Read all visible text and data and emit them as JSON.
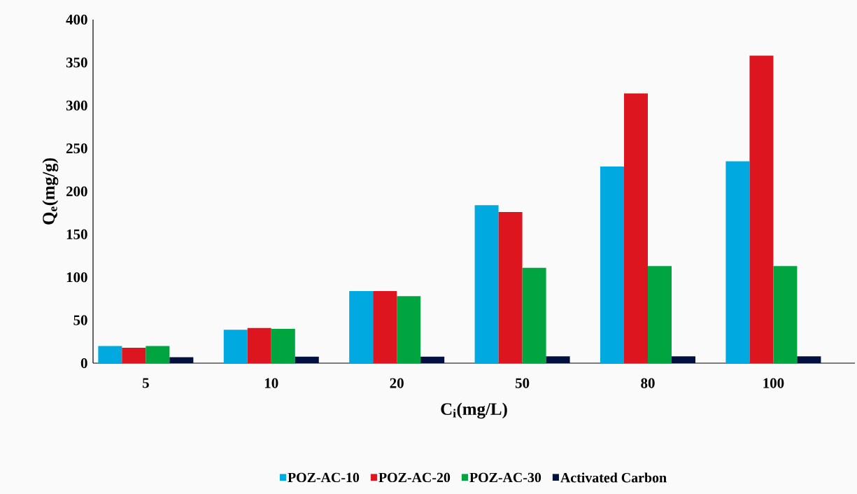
{
  "chart_data": {
    "type": "bar",
    "xlabel": "C$_{i}$(mg/L)",
    "ylabel": "Q$_{e}$(mg/g)",
    "categories": [
      "5",
      "10",
      "20",
      "50",
      "80",
      "100"
    ],
    "series": [
      {
        "name": "POZ-AC-10",
        "color": "#00a9e0",
        "values": [
          20,
          39,
          84,
          184,
          229,
          235
        ]
      },
      {
        "name": "POZ-AC-20",
        "color": "#dc151f",
        "values": [
          18,
          41,
          84,
          176,
          314,
          358
        ]
      },
      {
        "name": "POZ-AC-30",
        "color": "#00a53f",
        "values": [
          20,
          40,
          78,
          111,
          113,
          113
        ]
      },
      {
        "name": "Activated Carbon",
        "color": "#02103f",
        "values": [
          7,
          7.5,
          7.5,
          8,
          8,
          8
        ]
      }
    ],
    "ylim": [
      0,
      400
    ],
    "yticks": [
      0,
      50,
      100,
      150,
      200,
      250,
      300,
      350,
      400
    ],
    "legend": "bottom"
  }
}
